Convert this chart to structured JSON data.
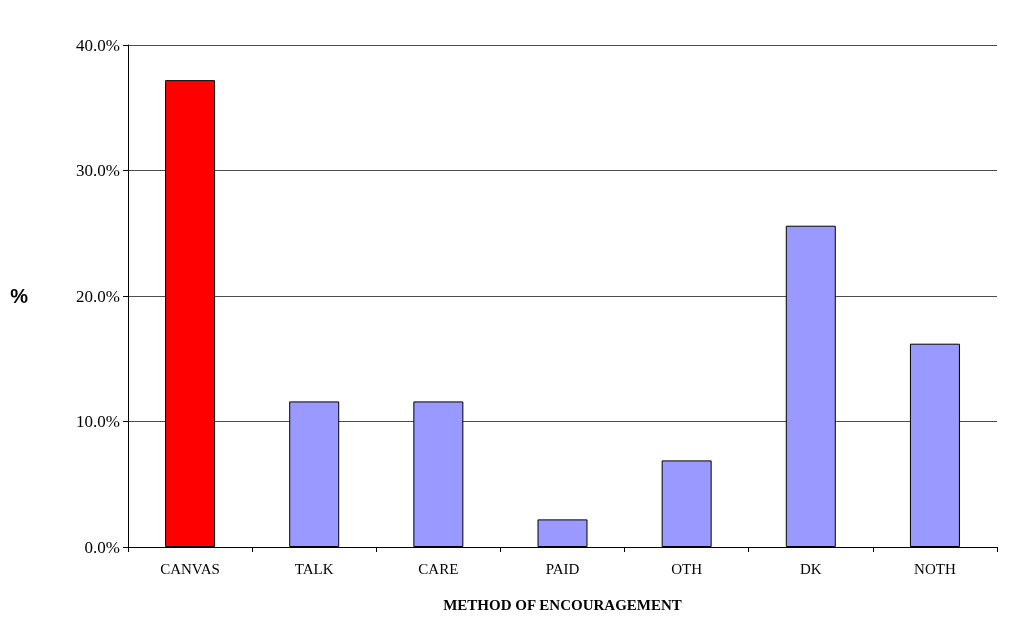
{
  "chart_data": {
    "type": "bar",
    "xlabel": "METHOD OF ENCOURAGEMENT",
    "ylabel": "%",
    "categories": [
      "CANVAS",
      "TALK",
      "CARE",
      "PAID",
      "OTH",
      "DK",
      "NOTH"
    ],
    "values": [
      37.2,
      11.6,
      11.6,
      2.2,
      6.9,
      25.6,
      16.2
    ],
    "colors": [
      "#ff0000",
      "#9999ff",
      "#9999ff",
      "#9999ff",
      "#9999ff",
      "#9999ff",
      "#9999ff"
    ],
    "ylim": [
      0,
      40
    ],
    "yticks": [
      {
        "value": 0,
        "label": "0.0%"
      },
      {
        "value": 10,
        "label": "10.0%"
      },
      {
        "value": 20,
        "label": "20.0%"
      },
      {
        "value": 30,
        "label": "30.0%"
      },
      {
        "value": 40,
        "label": "40.0%"
      }
    ],
    "grid": "y"
  }
}
